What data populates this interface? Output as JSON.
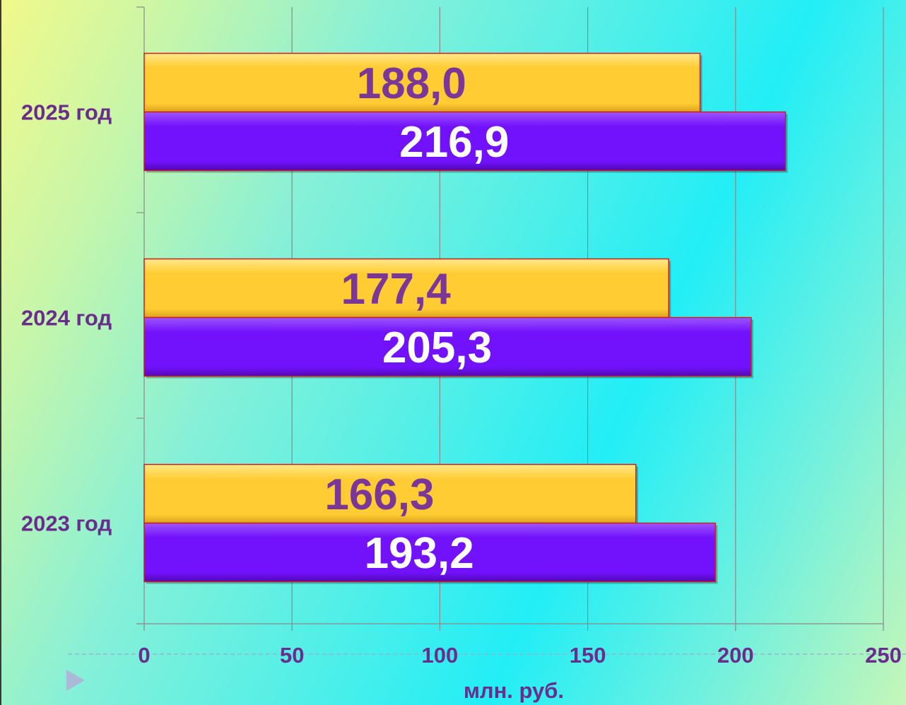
{
  "chart_data": {
    "type": "bar",
    "orientation": "horizontal",
    "categories": [
      "2023 год",
      "2024 год",
      "2025 год"
    ],
    "series": [
      {
        "values": [
          166.3,
          177.4,
          188.0
        ],
        "labels": [
          "166,3",
          "177,4",
          "188,0"
        ],
        "color": "#ffcc33"
      },
      {
        "values": [
          193.2,
          205.3,
          216.9
        ],
        "labels": [
          "193,2",
          "205,3",
          "216,9"
        ],
        "color": "#7211fb"
      }
    ],
    "xlabel": "млн. руб.",
    "xlim": [
      0,
      250
    ],
    "xticks": [
      0,
      50,
      100,
      150,
      200,
      250
    ],
    "xtick_labels": [
      "0",
      "50",
      "100",
      "150",
      "200",
      "250"
    ],
    "grid": "vertical",
    "legend": "none"
  }
}
